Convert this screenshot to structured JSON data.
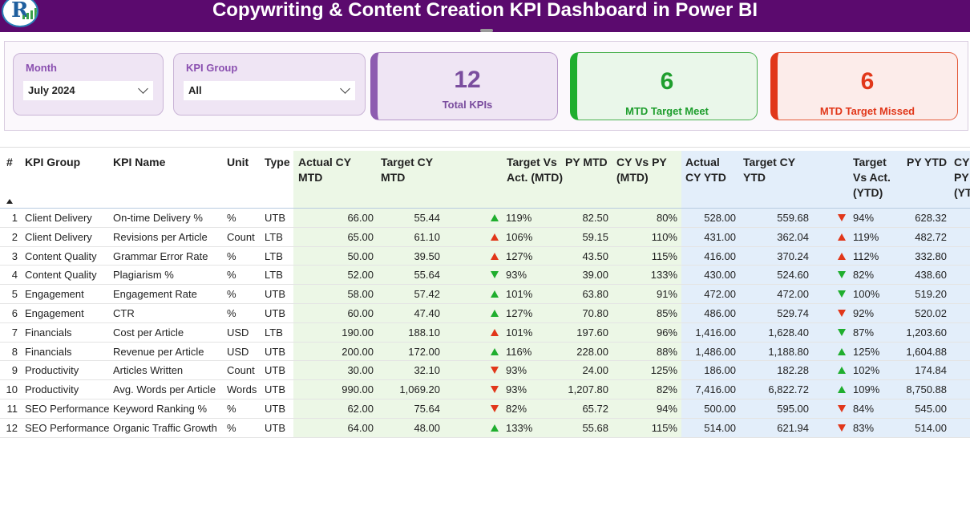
{
  "header": {
    "title": "Copywriting & Content Creation KPI Dashboard in Power BI"
  },
  "colors": {
    "header_bg": "#5b0a6e",
    "good": "#1fae2e",
    "bad": "#e1371a",
    "accent": "#8d5cb0"
  },
  "slicers": {
    "month": {
      "label": "Month",
      "value": "July 2024"
    },
    "kpi_group": {
      "label": "KPI Group",
      "value": "All"
    }
  },
  "cards": [
    {
      "value": "12",
      "label": "Total KPIs"
    },
    {
      "value": "6",
      "label": "MTD Target Meet"
    },
    {
      "value": "6",
      "label": "MTD Target Missed"
    }
  ],
  "table": {
    "columns": [
      "#",
      "KPI Group",
      "KPI Name",
      "Unit",
      "Type",
      "Actual CY MTD",
      "Target CY MTD",
      "Target Vs Act. (MTD)",
      "PY MTD",
      "CY Vs PY (MTD)",
      "Actual CY YTD",
      "Target CY YTD",
      "Target Vs Act. (YTD)",
      "PY YTD",
      "CY Vs PY (YTD)"
    ],
    "rows": [
      {
        "n": "1",
        "group": "Client Delivery",
        "name": "On-time Delivery %",
        "unit": "%",
        "type": "UTB",
        "act_mtd": "66.00",
        "tgt_mtd": "55.44",
        "mtd_dir": "up",
        "mtd_color": "green",
        "tva_mtd": "119%",
        "py_mtd": "82.50",
        "cvp_mtd": "80%",
        "act_ytd": "528.00",
        "tgt_ytd": "559.68",
        "ytd_dir": "down",
        "ytd_color": "red",
        "tva_ytd": "94%",
        "py_ytd": "628.32"
      },
      {
        "n": "2",
        "group": "Client Delivery",
        "name": "Revisions per Article",
        "unit": "Count",
        "type": "LTB",
        "act_mtd": "65.00",
        "tgt_mtd": "61.10",
        "mtd_dir": "up",
        "mtd_color": "red",
        "tva_mtd": "106%",
        "py_mtd": "59.15",
        "cvp_mtd": "110%",
        "act_ytd": "431.00",
        "tgt_ytd": "362.04",
        "ytd_dir": "up",
        "ytd_color": "red",
        "tva_ytd": "119%",
        "py_ytd": "482.72"
      },
      {
        "n": "3",
        "group": "Content Quality",
        "name": "Grammar Error Rate",
        "unit": "%",
        "type": "LTB",
        "act_mtd": "50.00",
        "tgt_mtd": "39.50",
        "mtd_dir": "up",
        "mtd_color": "red",
        "tva_mtd": "127%",
        "py_mtd": "43.50",
        "cvp_mtd": "115%",
        "act_ytd": "416.00",
        "tgt_ytd": "370.24",
        "ytd_dir": "up",
        "ytd_color": "red",
        "tva_ytd": "112%",
        "py_ytd": "332.80"
      },
      {
        "n": "4",
        "group": "Content Quality",
        "name": "Plagiarism %",
        "unit": "%",
        "type": "LTB",
        "act_mtd": "52.00",
        "tgt_mtd": "55.64",
        "mtd_dir": "down",
        "mtd_color": "green",
        "tva_mtd": "93%",
        "py_mtd": "39.00",
        "cvp_mtd": "133%",
        "act_ytd": "430.00",
        "tgt_ytd": "524.60",
        "ytd_dir": "down",
        "ytd_color": "green",
        "tva_ytd": "82%",
        "py_ytd": "438.60"
      },
      {
        "n": "5",
        "group": "Engagement",
        "name": "Engagement Rate",
        "unit": "%",
        "type": "UTB",
        "act_mtd": "58.00",
        "tgt_mtd": "57.42",
        "mtd_dir": "up",
        "mtd_color": "green",
        "tva_mtd": "101%",
        "py_mtd": "63.80",
        "cvp_mtd": "91%",
        "act_ytd": "472.00",
        "tgt_ytd": "472.00",
        "ytd_dir": "down",
        "ytd_color": "green",
        "tva_ytd": "100%",
        "py_ytd": "519.20"
      },
      {
        "n": "6",
        "group": "Engagement",
        "name": "CTR",
        "unit": "%",
        "type": "UTB",
        "act_mtd": "60.00",
        "tgt_mtd": "47.40",
        "mtd_dir": "up",
        "mtd_color": "green",
        "tva_mtd": "127%",
        "py_mtd": "70.80",
        "cvp_mtd": "85%",
        "act_ytd": "486.00",
        "tgt_ytd": "529.74",
        "ytd_dir": "down",
        "ytd_color": "red",
        "tva_ytd": "92%",
        "py_ytd": "520.02"
      },
      {
        "n": "7",
        "group": "Financials",
        "name": "Cost per Article",
        "unit": "USD",
        "type": "LTB",
        "act_mtd": "190.00",
        "tgt_mtd": "188.10",
        "mtd_dir": "up",
        "mtd_color": "red",
        "tva_mtd": "101%",
        "py_mtd": "197.60",
        "cvp_mtd": "96%",
        "act_ytd": "1,416.00",
        "tgt_ytd": "1,628.40",
        "ytd_dir": "down",
        "ytd_color": "green",
        "tva_ytd": "87%",
        "py_ytd": "1,203.60"
      },
      {
        "n": "8",
        "group": "Financials",
        "name": "Revenue per Article",
        "unit": "USD",
        "type": "UTB",
        "act_mtd": "200.00",
        "tgt_mtd": "172.00",
        "mtd_dir": "up",
        "mtd_color": "green",
        "tva_mtd": "116%",
        "py_mtd": "228.00",
        "cvp_mtd": "88%",
        "act_ytd": "1,486.00",
        "tgt_ytd": "1,188.80",
        "ytd_dir": "up",
        "ytd_color": "green",
        "tva_ytd": "125%",
        "py_ytd": "1,604.88"
      },
      {
        "n": "9",
        "group": "Productivity",
        "name": "Articles Written",
        "unit": "Count",
        "type": "UTB",
        "act_mtd": "30.00",
        "tgt_mtd": "32.10",
        "mtd_dir": "down",
        "mtd_color": "red",
        "tva_mtd": "93%",
        "py_mtd": "24.00",
        "cvp_mtd": "125%",
        "act_ytd": "186.00",
        "tgt_ytd": "182.28",
        "ytd_dir": "up",
        "ytd_color": "green",
        "tva_ytd": "102%",
        "py_ytd": "174.84"
      },
      {
        "n": "10",
        "group": "Productivity",
        "name": "Avg. Words per Article",
        "unit": "Words",
        "type": "UTB",
        "act_mtd": "990.00",
        "tgt_mtd": "1,069.20",
        "mtd_dir": "down",
        "mtd_color": "red",
        "tva_mtd": "93%",
        "py_mtd": "1,207.80",
        "cvp_mtd": "82%",
        "act_ytd": "7,416.00",
        "tgt_ytd": "6,822.72",
        "ytd_dir": "up",
        "ytd_color": "green",
        "tva_ytd": "109%",
        "py_ytd": "8,750.88"
      },
      {
        "n": "11",
        "group": "SEO Performance",
        "name": "Keyword Ranking %",
        "unit": "%",
        "type": "UTB",
        "act_mtd": "62.00",
        "tgt_mtd": "75.64",
        "mtd_dir": "down",
        "mtd_color": "red",
        "tva_mtd": "82%",
        "py_mtd": "65.72",
        "cvp_mtd": "94%",
        "act_ytd": "500.00",
        "tgt_ytd": "595.00",
        "ytd_dir": "down",
        "ytd_color": "red",
        "tva_ytd": "84%",
        "py_ytd": "545.00"
      },
      {
        "n": "12",
        "group": "SEO Performance",
        "name": "Organic Traffic Growth",
        "unit": "%",
        "type": "UTB",
        "act_mtd": "64.00",
        "tgt_mtd": "48.00",
        "mtd_dir": "up",
        "mtd_color": "green",
        "tva_mtd": "133%",
        "py_mtd": "55.68",
        "cvp_mtd": "115%",
        "act_ytd": "514.00",
        "tgt_ytd": "621.94",
        "ytd_dir": "down",
        "ytd_color": "red",
        "tva_ytd": "83%",
        "py_ytd": "514.00"
      }
    ]
  }
}
